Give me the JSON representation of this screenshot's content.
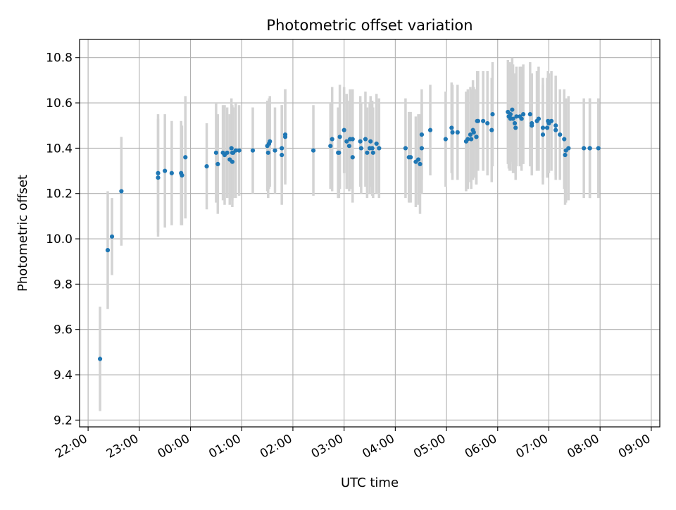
{
  "chart_data": {
    "type": "scatter",
    "title": "Photometric offset variation",
    "xlabel": "UTC time",
    "ylabel": "Photometric offset",
    "grid": true,
    "x_ticks": [
      "22:00",
      "23:00",
      "00:00",
      "01:00",
      "02:00",
      "03:00",
      "04:00",
      "05:00",
      "06:00",
      "07:00",
      "08:00",
      "09:00"
    ],
    "y_ticks": [
      "9.2",
      "9.4",
      "9.6",
      "9.8",
      "10.0",
      "10.2",
      "10.4",
      "10.6",
      "10.8"
    ],
    "xlim": [
      "21:50",
      "09:10"
    ],
    "ylim": [
      9.17,
      10.88
    ],
    "colors": {
      "point": "#1f77b4",
      "errorbar": "#d3d3d3",
      "grid": "#b0b0b0"
    },
    "series": [
      {
        "x": [
          "22:14",
          "22:23",
          "22:28",
          "22:39",
          "23:22",
          "23:22",
          "23:30",
          "23:38",
          "23:49",
          "23:50",
          "23:54",
          "00:19",
          "00:30",
          "00:32",
          "00:38",
          "00:40",
          "00:43",
          "00:46",
          "00:48",
          "00:49",
          "00:49",
          "00:50",
          "00:53",
          "00:57",
          "01:13",
          "01:30",
          "01:31",
          "01:32",
          "01:33",
          "01:39",
          "01:47",
          "01:47",
          "01:51",
          "01:51",
          "02:24",
          "02:44",
          "02:46",
          "02:53",
          "02:54",
          "02:55",
          "03:00",
          "03:03",
          "03:06",
          "03:07",
          "03:10",
          "03:10",
          "03:19",
          "03:20",
          "03:25",
          "03:27",
          "03:30",
          "03:31",
          "03:33",
          "03:34",
          "03:38",
          "03:41",
          "04:12",
          "04:16",
          "04:18",
          "04:24",
          "04:27",
          "04:29",
          "04:31",
          "04:31",
          "04:41",
          "04:59",
          "05:06",
          "05:07",
          "05:13",
          "05:23",
          "05:25",
          "05:28",
          "05:29",
          "05:31",
          "05:32",
          "05:35",
          "05:35",
          "05:36",
          "05:37",
          "05:43",
          "05:48",
          "05:53",
          "05:54",
          "06:12",
          "06:13",
          "06:14",
          "06:15",
          "06:15",
          "06:17",
          "06:18",
          "06:20",
          "06:21",
          "06:22",
          "06:26",
          "06:28",
          "06:30",
          "06:38",
          "06:40",
          "06:40",
          "06:46",
          "06:48",
          "06:53",
          "06:53",
          "06:58",
          "06:59",
          "07:00",
          "07:03",
          "07:08",
          "07:08",
          "07:13",
          "07:18",
          "07:19",
          "07:20",
          "07:23",
          "07:41",
          "07:48",
          "07:48",
          "07:58"
        ],
        "y": [
          9.47,
          9.95,
          10.01,
          10.21,
          10.29,
          10.27,
          10.3,
          10.29,
          10.29,
          10.28,
          10.36,
          10.32,
          10.38,
          10.33,
          10.38,
          10.37,
          10.38,
          10.35,
          10.4,
          10.34,
          10.38,
          10.38,
          10.39,
          10.39,
          10.39,
          10.41,
          10.38,
          10.42,
          10.43,
          10.39,
          10.4,
          10.37,
          10.46,
          10.45,
          10.39,
          10.41,
          10.44,
          10.38,
          10.38,
          10.45,
          10.48,
          10.43,
          10.41,
          10.44,
          10.44,
          10.36,
          10.43,
          10.4,
          10.44,
          10.38,
          10.4,
          10.43,
          10.4,
          10.38,
          10.42,
          10.4,
          10.4,
          10.36,
          10.36,
          10.34,
          10.35,
          10.33,
          10.4,
          10.46,
          10.48,
          10.44,
          10.49,
          10.47,
          10.47,
          10.43,
          10.44,
          10.46,
          10.44,
          10.48,
          10.47,
          10.45,
          10.45,
          10.52,
          10.52,
          10.52,
          10.51,
          10.48,
          10.55,
          10.56,
          10.54,
          10.54,
          10.53,
          10.55,
          10.57,
          10.53,
          10.51,
          10.49,
          10.54,
          10.54,
          10.53,
          10.55,
          10.55,
          10.5,
          10.51,
          10.52,
          10.53,
          10.46,
          10.49,
          10.49,
          10.52,
          10.51,
          10.52,
          10.5,
          10.48,
          10.46,
          10.44,
          10.37,
          10.39,
          10.4,
          10.4,
          10.4,
          10.4,
          10.4
        ],
        "yerr": [
          0.23,
          0.26,
          0.17,
          0.24,
          0.26,
          0.26,
          0.25,
          0.23,
          0.23,
          0.22,
          0.27,
          0.19,
          0.22,
          0.22,
          0.21,
          0.22,
          0.2,
          0.2,
          0.22,
          0.2,
          0.21,
          0.2,
          0.21,
          0.2,
          0.19,
          0.2,
          0.2,
          0.2,
          0.2,
          0.19,
          0.19,
          0.22,
          0.2,
          0.21,
          0.2,
          0.19,
          0.23,
          0.2,
          0.2,
          0.23,
          0.19,
          0.21,
          0.2,
          0.22,
          0.22,
          0.2,
          0.2,
          0.2,
          0.21,
          0.2,
          0.2,
          0.2,
          0.21,
          0.2,
          0.22,
          0.22,
          0.22,
          0.2,
          0.2,
          0.2,
          0.2,
          0.22,
          0.2,
          0.2,
          0.2,
          0.21,
          0.2,
          0.21,
          0.21,
          0.22,
          0.22,
          0.21,
          0.22,
          0.22,
          0.2,
          0.21,
          0.21,
          0.22,
          0.22,
          0.22,
          0.23,
          0.23,
          0.23,
          0.23,
          0.23,
          0.24,
          0.23,
          0.22,
          0.23,
          0.24,
          0.22,
          0.23,
          0.22,
          0.22,
          0.23,
          0.22,
          0.23,
          0.22,
          0.22,
          0.22,
          0.23,
          0.22,
          0.22,
          0.22,
          0.22,
          0.22,
          0.22,
          0.22,
          0.22,
          0.2,
          0.22,
          0.22,
          0.23,
          0.23,
          0.22,
          0.22,
          0.22,
          0.22
        ]
      }
    ]
  }
}
